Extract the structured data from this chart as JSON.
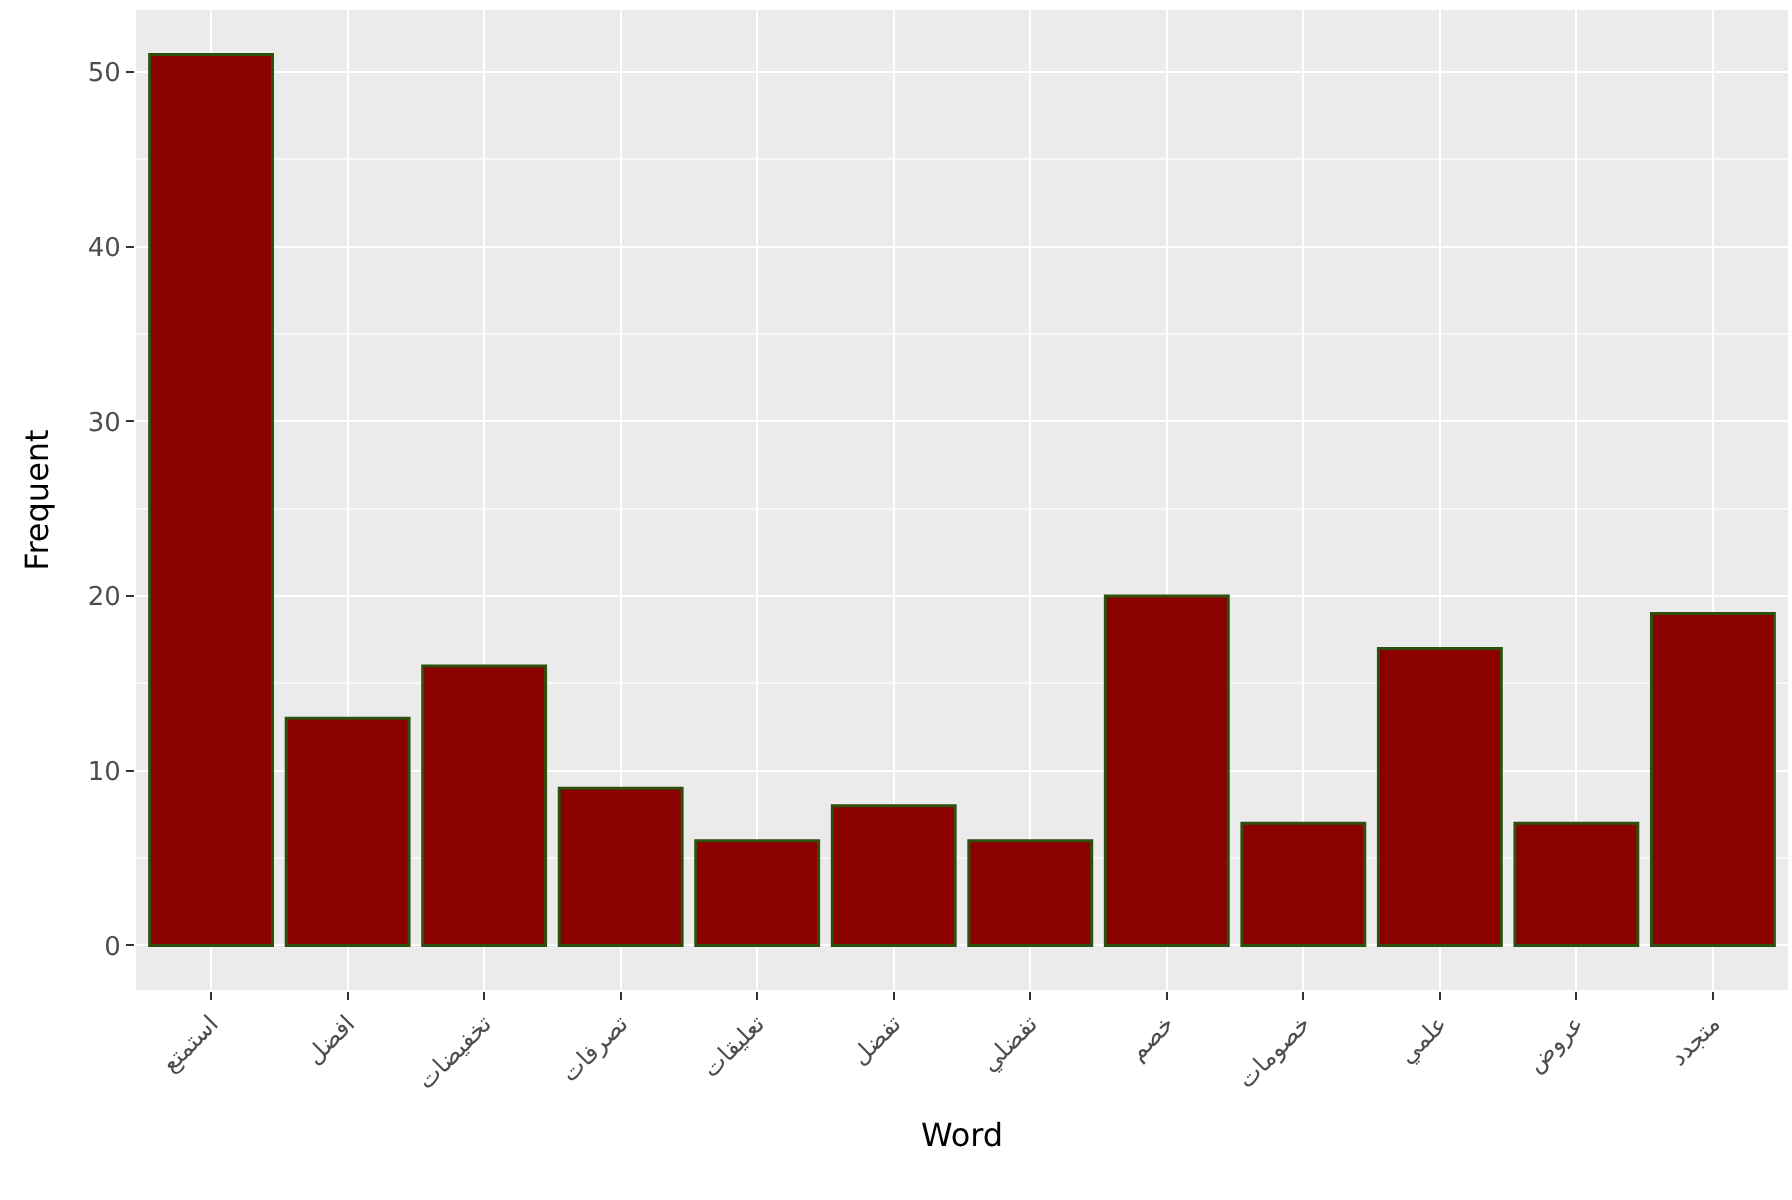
{
  "chart_data": {
    "type": "bar",
    "xlabel": "Word",
    "ylabel": "Frequent",
    "categories": [
      "استمتع",
      "افضل",
      "تخفيضات",
      "تصرفات",
      "تعليقات",
      "تفضل",
      "تفضلي",
      "خصم",
      "خصومات",
      "علمي",
      "عروض",
      "متجدد"
    ],
    "values": [
      51,
      13,
      16,
      9,
      6,
      8,
      6,
      20,
      7,
      17,
      7,
      19
    ],
    "color": "#8b0000",
    "ylim": [
      -2.55,
      53.55
    ],
    "yticks": [
      0,
      10,
      20,
      30,
      40,
      50
    ],
    "grid": true,
    "legend": false
  }
}
